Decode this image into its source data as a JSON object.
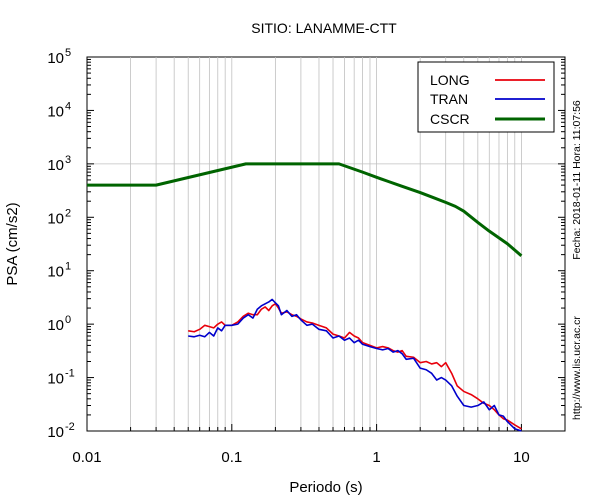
{
  "chart_data": {
    "type": "line",
    "title": "SITIO: LANAMME-CTT",
    "xlabel": "Periodo (s)",
    "ylabel": "PSA (cm/s2)",
    "x_scale": "log",
    "y_scale": "log",
    "xlim": [
      0.01,
      20
    ],
    "ylim": [
      0.01,
      100000
    ],
    "x_ticks": [
      "0.01",
      "0.1",
      "1",
      "10"
    ],
    "y_ticks": [
      {
        "base": "10",
        "exp": "-2"
      },
      {
        "base": "10",
        "exp": "-1"
      },
      {
        "base": "10",
        "exp": "0"
      },
      {
        "base": "10",
        "exp": "1"
      },
      {
        "base": "10",
        "exp": "2"
      },
      {
        "base": "10",
        "exp": "3"
      },
      {
        "base": "10",
        "exp": "4"
      },
      {
        "base": "10",
        "exp": "5"
      }
    ],
    "grid": "vertical minor and major lines",
    "legend_position": "top-right",
    "series": [
      {
        "name": "LONG",
        "color": "#e8000b",
        "x": [
          0.05,
          0.055,
          0.06,
          0.065,
          0.07,
          0.075,
          0.08,
          0.085,
          0.09,
          0.1,
          0.11,
          0.12,
          0.13,
          0.14,
          0.15,
          0.16,
          0.17,
          0.18,
          0.19,
          0.2,
          0.21,
          0.22,
          0.24,
          0.26,
          0.28,
          0.3,
          0.33,
          0.36,
          0.4,
          0.45,
          0.5,
          0.55,
          0.6,
          0.65,
          0.7,
          0.75,
          0.8,
          0.9,
          1.0,
          1.1,
          1.2,
          1.3,
          1.4,
          1.5,
          1.6,
          1.8,
          2.0,
          2.2,
          2.4,
          2.6,
          2.8,
          3.0,
          3.3,
          3.6,
          4.0,
          4.5,
          5.0,
          5.5,
          6.0,
          6.5,
          7.0,
          7.5,
          8.0,
          9.0,
          10.0
        ],
        "y": [
          0.75,
          0.72,
          0.8,
          0.95,
          0.9,
          0.85,
          1.0,
          1.1,
          0.95,
          0.95,
          1.1,
          1.4,
          1.6,
          1.5,
          1.5,
          1.9,
          2.1,
          1.8,
          2.2,
          2.4,
          2.0,
          1.6,
          1.7,
          1.5,
          1.4,
          1.25,
          1.1,
          1.05,
          0.95,
          0.85,
          0.65,
          0.6,
          0.55,
          0.7,
          0.6,
          0.55,
          0.45,
          0.4,
          0.36,
          0.38,
          0.36,
          0.32,
          0.3,
          0.32,
          0.25,
          0.24,
          0.19,
          0.2,
          0.18,
          0.19,
          0.16,
          0.19,
          0.12,
          0.07,
          0.055,
          0.048,
          0.04,
          0.033,
          0.03,
          0.025,
          0.02,
          0.017,
          0.016,
          0.013,
          0.011
        ]
      },
      {
        "name": "TRAN",
        "color": "#0000cc",
        "x": [
          0.05,
          0.055,
          0.06,
          0.065,
          0.07,
          0.075,
          0.08,
          0.085,
          0.09,
          0.1,
          0.11,
          0.12,
          0.13,
          0.14,
          0.15,
          0.16,
          0.17,
          0.18,
          0.19,
          0.2,
          0.21,
          0.22,
          0.24,
          0.26,
          0.28,
          0.3,
          0.33,
          0.36,
          0.4,
          0.45,
          0.5,
          0.55,
          0.6,
          0.65,
          0.7,
          0.75,
          0.8,
          0.9,
          1.0,
          1.1,
          1.2,
          1.3,
          1.4,
          1.5,
          1.6,
          1.8,
          2.0,
          2.2,
          2.4,
          2.6,
          2.8,
          3.0,
          3.3,
          3.6,
          4.0,
          4.5,
          5.0,
          5.5,
          6.0,
          6.5,
          7.0,
          7.5,
          8.0,
          9.0,
          10.0
        ],
        "y": [
          0.6,
          0.58,
          0.62,
          0.58,
          0.7,
          0.6,
          0.85,
          0.75,
          0.95,
          0.95,
          1.0,
          1.3,
          1.5,
          1.3,
          1.9,
          2.2,
          2.4,
          2.6,
          2.9,
          2.5,
          2.2,
          1.5,
          1.8,
          1.4,
          1.5,
          1.2,
          0.95,
          1.0,
          0.8,
          0.75,
          0.55,
          0.6,
          0.5,
          0.55,
          0.45,
          0.5,
          0.42,
          0.38,
          0.35,
          0.33,
          0.35,
          0.3,
          0.32,
          0.28,
          0.22,
          0.23,
          0.15,
          0.14,
          0.12,
          0.09,
          0.1,
          0.09,
          0.07,
          0.045,
          0.03,
          0.028,
          0.03,
          0.035,
          0.025,
          0.03,
          0.02,
          0.019,
          0.015,
          0.011,
          0.01
        ]
      },
      {
        "name": "CSCR",
        "color": "#006400",
        "x": [
          0.01,
          0.03,
          0.125,
          0.55,
          0.8,
          1.0,
          1.2,
          1.5,
          2.0,
          2.5,
          3.0,
          3.5,
          4.0,
          5.0,
          6.0,
          8.0,
          10.0
        ],
        "y": [
          400,
          400,
          1000,
          1000,
          700,
          560,
          470,
          380,
          290,
          230,
          190,
          160,
          130,
          80,
          55,
          32,
          19
        ]
      }
    ]
  },
  "side_labels": {
    "timestamp": "Fecha: 2018-01-11  Hora: 11:07:56",
    "url": "http://www.lis.ucr.ac.cr"
  }
}
